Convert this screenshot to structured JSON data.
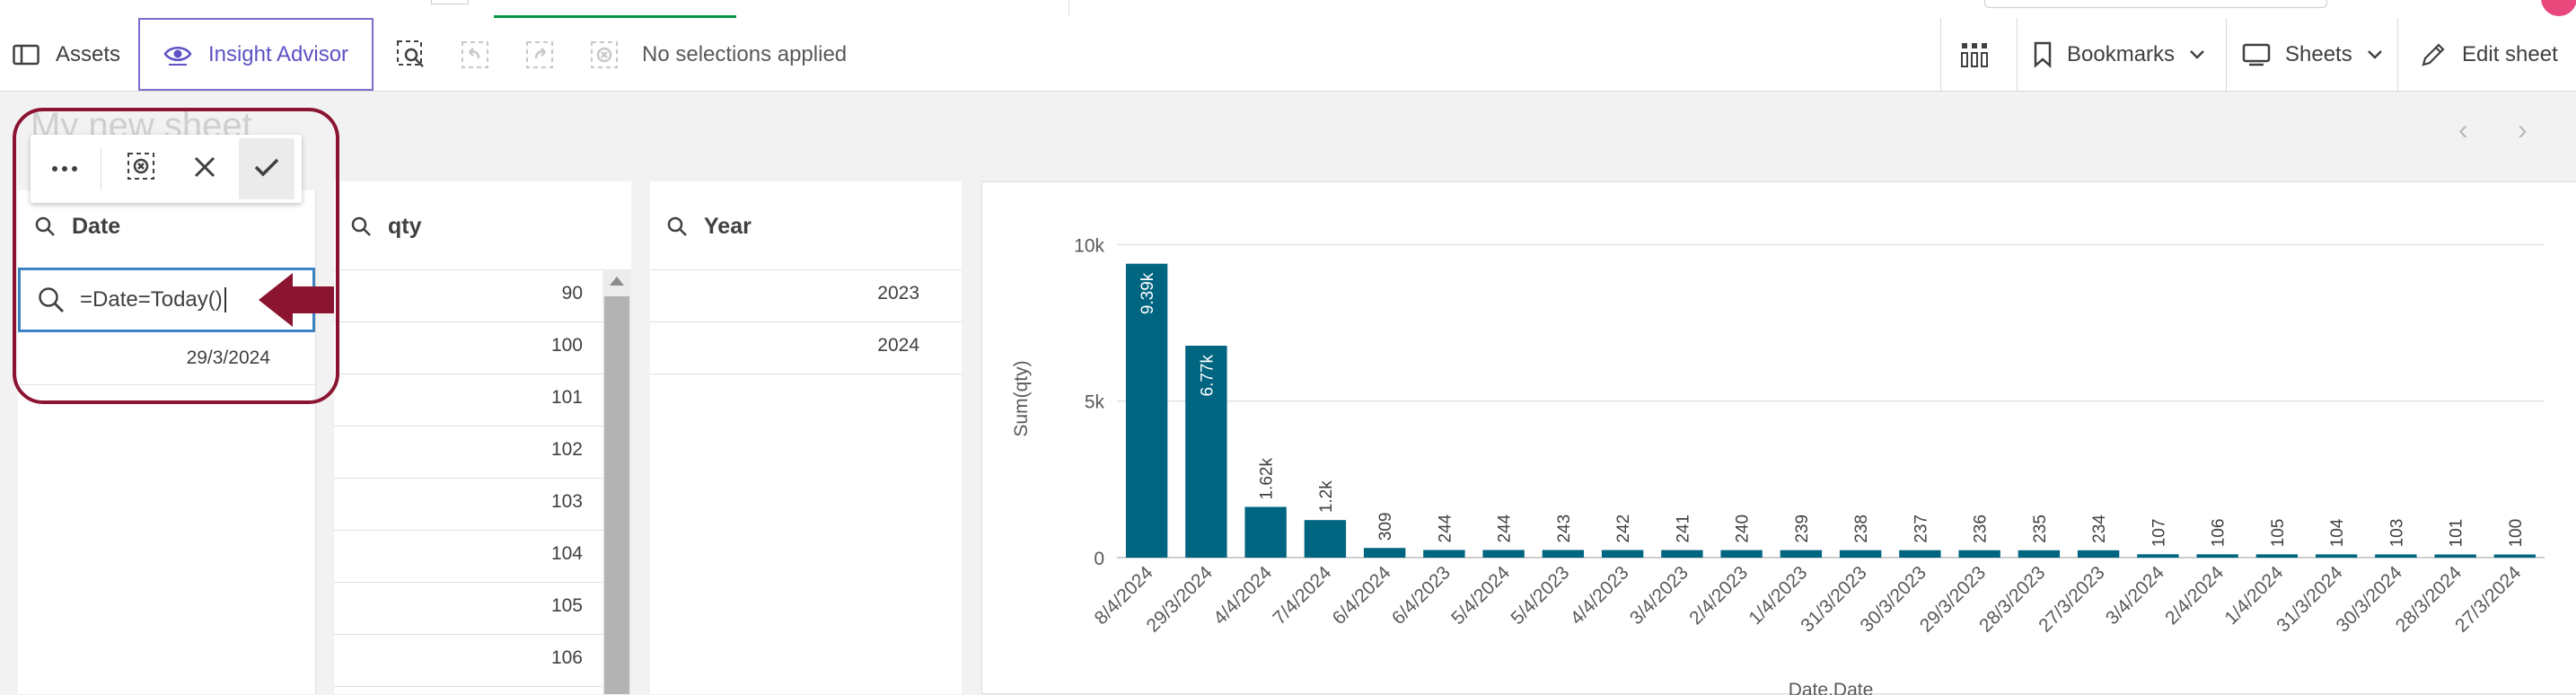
{
  "toolbar": {
    "assets_label": "Assets",
    "insight_label": "Insight Advisor",
    "no_selections": "No selections applied",
    "bookmarks_label": "Bookmarks",
    "sheets_label": "Sheets",
    "edit_sheet_label": "Edit sheet"
  },
  "sheet": {
    "title": "My new sheet",
    "prev_arrow": "‹",
    "next_arrow": "›"
  },
  "filters": {
    "date": {
      "title": "Date",
      "search_value": "=Date=Today()",
      "items": [
        "29/3/2024"
      ]
    },
    "qty": {
      "title": "qty",
      "items": [
        "90",
        "100",
        "101",
        "102",
        "103",
        "104",
        "105",
        "106"
      ]
    },
    "year": {
      "title": "Year",
      "items": [
        "2023",
        "2024"
      ]
    }
  },
  "colors": {
    "accent": "#5e52c4",
    "bar": "#006580",
    "selection_ring": "#8b1530",
    "search_border": "#3d83c4"
  },
  "chart_data": {
    "type": "bar",
    "title": "",
    "xlabel": "Date.Date",
    "ylabel": "Sum(qty)",
    "ylim": [
      0,
      10500
    ],
    "yticks": [
      {
        "v": 0,
        "label": "0"
      },
      {
        "v": 5000,
        "label": "5k"
      },
      {
        "v": 10000,
        "label": "10k"
      }
    ],
    "categories": [
      "8/4/2024",
      "29/3/2024",
      "4/4/2024",
      "7/4/2024",
      "6/4/2024",
      "6/4/2023",
      "5/4/2024",
      "5/4/2023",
      "4/4/2023",
      "3/4/2023",
      "2/4/2023",
      "1/4/2023",
      "31/3/2023",
      "30/3/2023",
      "29/3/2023",
      "28/3/2023",
      "27/3/2023",
      "3/4/2024",
      "2/4/2024",
      "1/4/2024",
      "31/3/2024",
      "30/3/2024",
      "28/3/2024",
      "27/3/2024"
    ],
    "values": [
      9390,
      6770,
      1620,
      1200,
      309,
      244,
      244,
      243,
      242,
      241,
      240,
      239,
      238,
      237,
      236,
      235,
      234,
      107,
      106,
      105,
      104,
      103,
      101,
      100
    ],
    "labels": [
      "9.39k",
      "6.77k",
      "1.62k",
      "1.2k",
      "309",
      "244",
      "244",
      "243",
      "242",
      "241",
      "240",
      "239",
      "238",
      "237",
      "236",
      "235",
      "234",
      "107",
      "106",
      "105",
      "104",
      "103",
      "101",
      "100"
    ]
  }
}
